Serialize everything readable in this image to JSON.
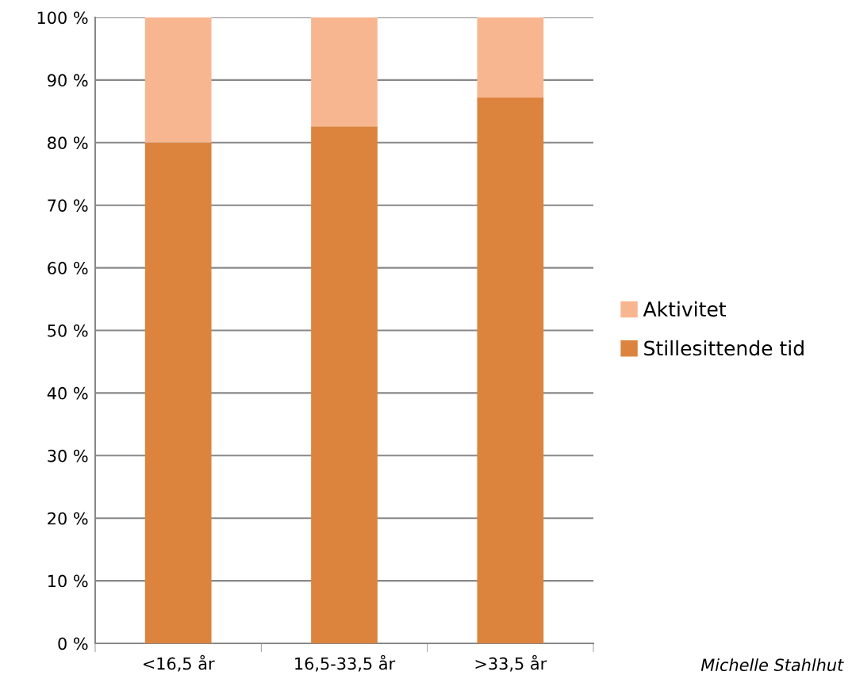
{
  "chart_data": {
    "type": "bar",
    "stacked": true,
    "categories": [
      "<16,5 år",
      "16,5-33,5 år",
      ">33,5 år"
    ],
    "series": [
      {
        "name": "Stillesittende tid",
        "color": "#dc843e",
        "values": [
          80.0,
          82.6,
          87.2
        ]
      },
      {
        "name": "Aktivitet",
        "color": "#f8b690",
        "values": [
          20.0,
          17.4,
          12.8
        ]
      }
    ],
    "ylim": [
      0,
      100
    ],
    "yticks": [
      {
        "value": 0,
        "label": "0 %"
      },
      {
        "value": 10,
        "label": "10 %"
      },
      {
        "value": 20,
        "label": "20 %"
      },
      {
        "value": 30,
        "label": "30 %"
      },
      {
        "value": 40,
        "label": "40 %"
      },
      {
        "value": 50,
        "label": "50 %"
      },
      {
        "value": 60,
        "label": "60 %"
      },
      {
        "value": 70,
        "label": "70 %"
      },
      {
        "value": 80,
        "label": "80 %"
      },
      {
        "value": 90,
        "label": "90 %"
      },
      {
        "value": 100,
        "label": "100 %"
      }
    ],
    "grid": "y",
    "legend": "right",
    "annotations": [
      "Michelle Stahlhut"
    ]
  }
}
